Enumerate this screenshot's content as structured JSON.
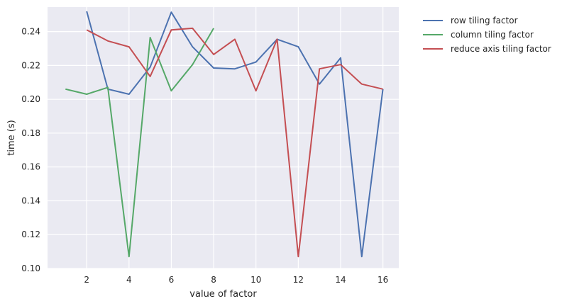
{
  "chart_data": {
    "type": "line",
    "title": "",
    "xlabel": "value of factor",
    "ylabel": "time (s)",
    "xlim": [
      0.15,
      16.75
    ],
    "ylim": [
      0.1,
      0.2545
    ],
    "x_ticks": [
      2,
      4,
      6,
      8,
      10,
      12,
      14,
      16
    ],
    "y_ticks": [
      0.1,
      0.12,
      0.14,
      0.16,
      0.18,
      0.2,
      0.22,
      0.24
    ],
    "grid": true,
    "legend_position": "outside-top-right",
    "series": [
      {
        "name": "row tiling factor",
        "color": "#4c72b0",
        "x": [
          2,
          3,
          4,
          5,
          6,
          7,
          8,
          9,
          10,
          11,
          12,
          13,
          14,
          15,
          16
        ],
        "y": [
          0.252,
          0.206,
          0.203,
          0.219,
          0.2515,
          0.231,
          0.2185,
          0.218,
          0.222,
          0.2355,
          0.231,
          0.209,
          0.2245,
          0.107,
          0.206
        ]
      },
      {
        "name": "column tiling factor",
        "color": "#55a868",
        "x": [
          1,
          2,
          3,
          4,
          5,
          6,
          7,
          8
        ],
        "y": [
          0.206,
          0.203,
          0.207,
          0.107,
          0.2365,
          0.205,
          0.2205,
          0.242
        ]
      },
      {
        "name": "reduce axis tiling factor",
        "color": "#c44e52",
        "x": [
          2,
          3,
          4,
          5,
          6,
          7,
          8,
          9,
          10,
          11,
          12,
          13,
          14,
          15,
          16
        ],
        "y": [
          0.241,
          0.2345,
          0.231,
          0.2135,
          0.241,
          0.242,
          0.2265,
          0.2355,
          0.205,
          0.2355,
          0.107,
          0.218,
          0.2205,
          0.209,
          0.206
        ]
      }
    ]
  }
}
